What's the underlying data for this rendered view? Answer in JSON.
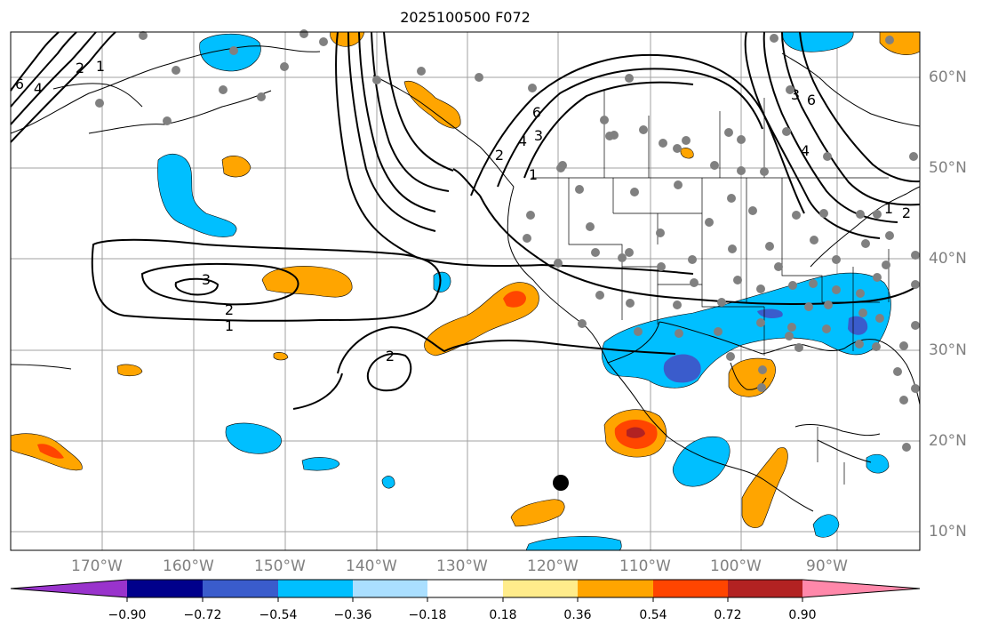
{
  "title": "2025100500 F072",
  "latitude_labels": [
    "60°N",
    "50°N",
    "40°N",
    "30°N",
    "20°N",
    "10°N"
  ],
  "longitude_labels": [
    "170°W",
    "160°W",
    "150°W",
    "140°W",
    "130°W",
    "120°W",
    "110°W",
    "100°W",
    "90°W"
  ],
  "contour_labels": [
    "6",
    "4",
    "2",
    "1",
    "3",
    "2",
    "1",
    "2",
    "6",
    "4",
    "3",
    "2",
    "1",
    "6",
    "4",
    "3",
    "2",
    "1"
  ],
  "colorbar": {
    "ticks": [
      "−0.90",
      "−0.72",
      "−0.54",
      "−0.36",
      "−0.18",
      "0.18",
      "0.36",
      "0.54",
      "0.72",
      "0.90"
    ],
    "colors": [
      "#9933cc",
      "#00008b",
      "#3a5ccc",
      "#00bfff",
      "#aadfff",
      "#ffffff",
      "#ffec8b",
      "#ffa500",
      "#ff4500",
      "#b22222",
      "#ff88aa"
    ]
  },
  "colors": {
    "land_outline": "#000000",
    "grid": "#a0a0a0",
    "station_marker": "#808080",
    "target_marker": "#000000"
  }
}
